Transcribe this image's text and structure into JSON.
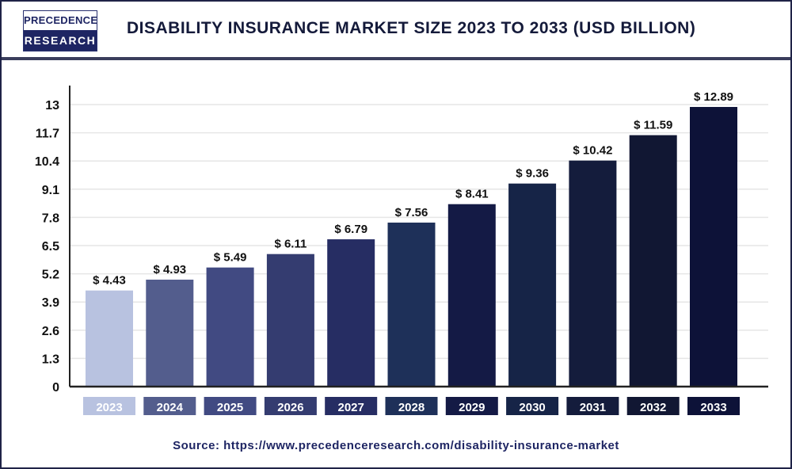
{
  "logo": {
    "line1": "PRECEDENCE",
    "line2": "RESEARCH"
  },
  "header": {
    "title": "DISABILITY INSURANCE MARKET SIZE 2023 TO 2033 (USD BILLION)"
  },
  "source": "Source: https://www.precedenceresearch.com/disability-insurance-market",
  "chart_data": {
    "type": "bar",
    "title": "DISABILITY INSURANCE MARKET SIZE 2023 TO 2033 (USD BILLION)",
    "categories": [
      "2023",
      "2024",
      "2025",
      "2026",
      "2027",
      "2028",
      "2029",
      "2030",
      "2031",
      "2032",
      "2033"
    ],
    "values": [
      4.43,
      4.93,
      5.49,
      6.11,
      6.79,
      7.56,
      8.41,
      9.36,
      10.42,
      11.59,
      12.89
    ],
    "data_labels": [
      "$ 4.43",
      "$ 4.93",
      "$ 5.49",
      "$ 6.11",
      "$ 6.79",
      "$ 7.56",
      "$ 8.41",
      "$ 9.36",
      "$ 10.42",
      "$ 11.59",
      "$ 12.89"
    ],
    "colors": [
      "#b8c2e0",
      "#535d8d",
      "#414a82",
      "#343c70",
      "#262d63",
      "#1e3059",
      "#141a45",
      "#162447",
      "#141c3c",
      "#111733",
      "#0d1238"
    ],
    "yticks": [
      "0",
      "1.3",
      "2.6",
      "3.9",
      "5.2",
      "6.5",
      "7.8",
      "9.1",
      "10.4",
      "11.7",
      "13"
    ],
    "ylim": [
      0,
      13
    ],
    "grid": true,
    "xlabel": "",
    "ylabel": ""
  }
}
